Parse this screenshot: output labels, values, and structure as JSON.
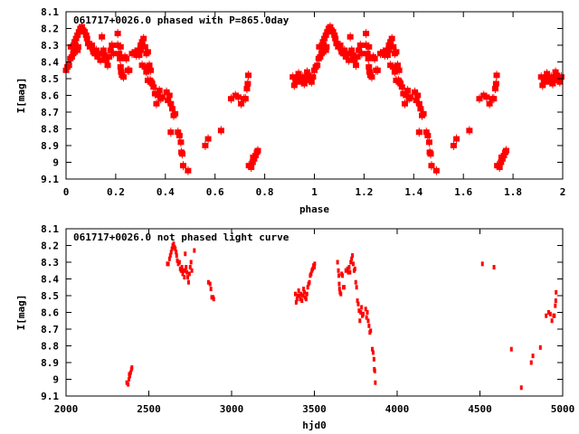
{
  "chart_data": [
    {
      "type": "scatter",
      "title": "061717+0026.0 phased with P=865.0day",
      "xlabel": "phase",
      "ylabel": "I[mag]",
      "period": 865.0,
      "phase_source": "observations of the unphased chart, phase = frac(hjd0 / period), plotted at phase and phase+1",
      "xlim": [
        0,
        2
      ],
      "ylim": [
        8.1,
        9.1
      ],
      "y_inverted": true,
      "xticks": [
        "0",
        "0.2",
        "0.4",
        "0.6",
        "0.8",
        "1",
        "1.2",
        "1.4",
        "1.6",
        "1.8",
        "2"
      ],
      "yticks": [
        "8.1",
        "8.2",
        "8.3",
        "8.4",
        "8.5",
        "8.6",
        "8.7",
        "8.8",
        "8.9",
        "9",
        "9.1"
      ],
      "grid": false,
      "color": "#ff0000"
    },
    {
      "type": "scatter",
      "title": "061717+0026.0 not phased light curve",
      "xlabel": "hjd0",
      "ylabel": "I[mag]",
      "xlim": [
        2000,
        5000
      ],
      "ylim": [
        8.1,
        9.1
      ],
      "y_inverted": true,
      "xticks": [
        "2000",
        "2500",
        "3000",
        "3500",
        "4000",
        "4500",
        "5000"
      ],
      "yticks": [
        "8.1",
        "8.2",
        "8.3",
        "8.4",
        "8.5",
        "8.6",
        "8.7",
        "8.8",
        "8.9",
        "9",
        "9.1"
      ],
      "grid": false,
      "color": "#ff0000",
      "points": [
        [
          2367,
          9.02
        ],
        [
          2375,
          9.03
        ],
        [
          2380,
          9.0
        ],
        [
          2382,
          8.97
        ],
        [
          2385,
          8.98
        ],
        [
          2390,
          8.96
        ],
        [
          2395,
          8.94
        ],
        [
          2398,
          8.93
        ],
        [
          2612,
          8.31
        ],
        [
          2618,
          8.31
        ],
        [
          2625,
          8.28
        ],
        [
          2630,
          8.26
        ],
        [
          2635,
          8.24
        ],
        [
          2640,
          8.22
        ],
        [
          2645,
          8.2
        ],
        [
          2650,
          8.19
        ],
        [
          2655,
          8.21
        ],
        [
          2660,
          8.22
        ],
        [
          2665,
          8.24
        ],
        [
          2668,
          8.26
        ],
        [
          2672,
          8.29
        ],
        [
          2678,
          8.31
        ],
        [
          2685,
          8.3
        ],
        [
          2690,
          8.34
        ],
        [
          2695,
          8.35
        ],
        [
          2700,
          8.33
        ],
        [
          2705,
          8.37
        ],
        [
          2710,
          8.35
        ],
        [
          2715,
          8.39
        ],
        [
          2720,
          8.35
        ],
        [
          2725,
          8.33
        ],
        [
          2730,
          8.36
        ],
        [
          2735,
          8.39
        ],
        [
          2740,
          8.42
        ],
        [
          2745,
          8.37
        ],
        [
          2750,
          8.33
        ],
        [
          2755,
          8.3
        ],
        [
          2760,
          8.35
        ],
        [
          2720,
          8.25
        ],
        [
          2775,
          8.23
        ],
        [
          2860,
          8.42
        ],
        [
          2870,
          8.43
        ],
        [
          2875,
          8.46
        ],
        [
          2880,
          8.51
        ],
        [
          2888,
          8.51
        ],
        [
          2892,
          8.52
        ],
        [
          3385,
          8.49
        ],
        [
          3390,
          8.54
        ],
        [
          3395,
          8.52
        ],
        [
          3400,
          8.5
        ],
        [
          3405,
          8.47
        ],
        [
          3410,
          8.5
        ],
        [
          3415,
          8.52
        ],
        [
          3420,
          8.49
        ],
        [
          3425,
          8.53
        ],
        [
          3430,
          8.5
        ],
        [
          3435,
          8.46
        ],
        [
          3440,
          8.48
        ],
        [
          3445,
          8.51
        ],
        [
          3450,
          8.52
        ],
        [
          3455,
          8.49
        ],
        [
          3460,
          8.45
        ],
        [
          3465,
          8.43
        ],
        [
          3470,
          8.42
        ],
        [
          3475,
          8.38
        ],
        [
          3480,
          8.37
        ],
        [
          3485,
          8.35
        ],
        [
          3490,
          8.34
        ],
        [
          3495,
          8.32
        ],
        [
          3500,
          8.33
        ],
        [
          3502,
          8.31
        ],
        [
          3640,
          8.3
        ],
        [
          3645,
          8.35
        ],
        [
          3648,
          8.38
        ],
        [
          3650,
          8.43
        ],
        [
          3652,
          8.46
        ],
        [
          3655,
          8.48
        ],
        [
          3660,
          8.49
        ],
        [
          3665,
          8.37
        ],
        [
          3670,
          8.38
        ],
        [
          3675,
          8.45
        ],
        [
          3680,
          8.45
        ],
        [
          3690,
          8.35
        ],
        [
          3700,
          8.34
        ],
        [
          3705,
          8.36
        ],
        [
          3710,
          8.33
        ],
        [
          3715,
          8.36
        ],
        [
          3720,
          8.3
        ],
        [
          3725,
          8.28
        ],
        [
          3730,
          8.26
        ],
        [
          3735,
          8.31
        ],
        [
          3740,
          8.35
        ],
        [
          3745,
          8.34
        ],
        [
          3750,
          8.42
        ],
        [
          3755,
          8.45
        ],
        [
          3760,
          8.53
        ],
        [
          3765,
          8.55
        ],
        [
          3770,
          8.59
        ],
        [
          3775,
          8.65
        ],
        [
          3780,
          8.6
        ],
        [
          3785,
          8.57
        ],
        [
          3790,
          8.62
        ],
        [
          3795,
          8.61
        ],
        [
          3810,
          8.58
        ],
        [
          3815,
          8.63
        ],
        [
          3820,
          8.6
        ],
        [
          3825,
          8.65
        ],
        [
          3830,
          8.68
        ],
        [
          3835,
          8.72
        ],
        [
          3840,
          8.71
        ],
        [
          3850,
          8.82
        ],
        [
          3855,
          8.84
        ],
        [
          3860,
          8.88
        ],
        [
          3862,
          8.94
        ],
        [
          3865,
          8.95
        ],
        [
          3868,
          9.02
        ],
        [
          4515,
          8.31
        ],
        [
          4585,
          8.33
        ],
        [
          4690,
          8.82
        ],
        [
          4750,
          9.05
        ],
        [
          4810,
          8.9
        ],
        [
          4820,
          8.86
        ],
        [
          4865,
          8.81
        ],
        [
          4900,
          8.62
        ],
        [
          4915,
          8.6
        ],
        [
          4925,
          8.61
        ],
        [
          4935,
          8.65
        ],
        [
          4945,
          8.62
        ],
        [
          4950,
          8.62
        ],
        [
          4955,
          8.56
        ],
        [
          4958,
          8.53
        ],
        [
          4960,
          8.48
        ]
      ]
    }
  ]
}
